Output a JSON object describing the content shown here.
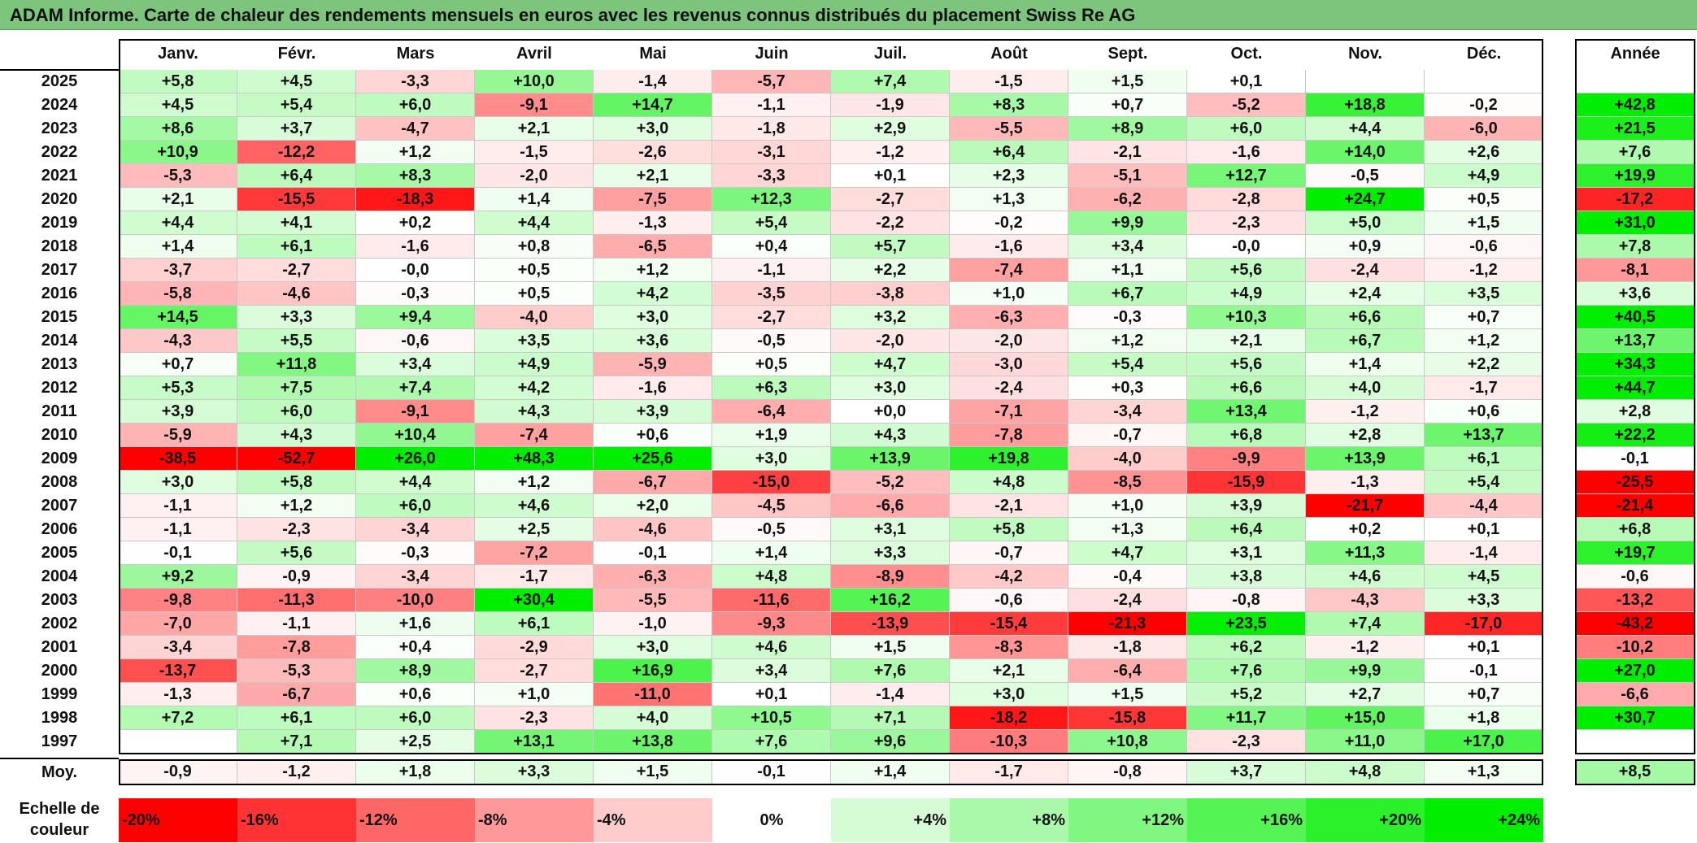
{
  "title": "ADAM Informe. Carte de chaleur des rendements mensuels en euros avec les revenus connus distribués du placement Swiss Re AG",
  "chart_data": {
    "type": "heatmap",
    "months": [
      "Janv.",
      "Févr.",
      "Mars",
      "Avril",
      "Mai",
      "Juin",
      "Juil.",
      "Août",
      "Sept.",
      "Oct.",
      "Nov.",
      "Déc."
    ],
    "year_label": "Année",
    "rows": [
      {
        "year": "2025",
        "values": [
          "+5,8",
          "+4,5",
          "-3,3",
          "+10,0",
          "-1,4",
          "-5,7",
          "+7,4",
          "-1,5",
          "+1,5",
          "+0,1",
          "",
          ""
        ],
        "annual": ""
      },
      {
        "year": "2024",
        "values": [
          "+4,5",
          "+5,4",
          "+6,0",
          "-9,1",
          "+14,7",
          "-1,1",
          "-1,9",
          "+8,3",
          "+0,7",
          "-5,2",
          "+18,8",
          "-0,2"
        ],
        "annual": "+42,8"
      },
      {
        "year": "2023",
        "values": [
          "+8,6",
          "+3,7",
          "-4,7",
          "+2,1",
          "+3,0",
          "-1,8",
          "+2,9",
          "-5,5",
          "+8,9",
          "+6,0",
          "+4,4",
          "-6,0"
        ],
        "annual": "+21,5"
      },
      {
        "year": "2022",
        "values": [
          "+10,9",
          "-12,2",
          "+1,2",
          "-1,5",
          "-2,6",
          "-3,1",
          "-1,2",
          "+6,4",
          "-2,1",
          "-1,6",
          "+14,0",
          "+2,6"
        ],
        "annual": "+7,6"
      },
      {
        "year": "2021",
        "values": [
          "-5,3",
          "+6,4",
          "+8,3",
          "-2,0",
          "+2,1",
          "-3,3",
          "+0,1",
          "+2,3",
          "-5,1",
          "+12,7",
          "-0,5",
          "+4,9"
        ],
        "annual": "+19,9"
      },
      {
        "year": "2020",
        "values": [
          "+2,1",
          "-15,5",
          "-18,3",
          "+1,4",
          "-7,5",
          "+12,3",
          "-2,7",
          "+1,3",
          "-6,2",
          "-2,8",
          "+24,7",
          "+0,5"
        ],
        "annual": "-17,2"
      },
      {
        "year": "2019",
        "values": [
          "+4,4",
          "+4,1",
          "+0,2",
          "+4,4",
          "-1,3",
          "+5,4",
          "-2,2",
          "-0,2",
          "+9,9",
          "-2,3",
          "+5,0",
          "+1,5"
        ],
        "annual": "+31,0"
      },
      {
        "year": "2018",
        "values": [
          "+1,4",
          "+6,1",
          "-1,6",
          "+0,8",
          "-6,5",
          "+0,4",
          "+5,7",
          "-1,6",
          "+3,4",
          "-0,0",
          "+0,9",
          "-0,6"
        ],
        "annual": "+7,8"
      },
      {
        "year": "2017",
        "values": [
          "-3,7",
          "-2,7",
          "-0,0",
          "+0,5",
          "+1,2",
          "-1,1",
          "+2,2",
          "-7,4",
          "+1,1",
          "+5,6",
          "-2,4",
          "-1,2"
        ],
        "annual": "-8,1"
      },
      {
        "year": "2016",
        "values": [
          "-5,8",
          "-4,6",
          "-0,3",
          "+0,5",
          "+4,2",
          "-3,5",
          "-3,8",
          "+1,0",
          "+6,7",
          "+4,9",
          "+2,4",
          "+3,5"
        ],
        "annual": "+3,6"
      },
      {
        "year": "2015",
        "values": [
          "+14,5",
          "+3,3",
          "+9,4",
          "-4,0",
          "+3,0",
          "-2,7",
          "+3,2",
          "-6,3",
          "-0,3",
          "+10,3",
          "+6,6",
          "+0,7"
        ],
        "annual": "+40,5"
      },
      {
        "year": "2014",
        "values": [
          "-4,3",
          "+5,5",
          "-0,6",
          "+3,5",
          "+3,6",
          "-0,5",
          "-2,0",
          "-2,0",
          "+1,2",
          "+2,1",
          "+6,7",
          "+1,2"
        ],
        "annual": "+13,7"
      },
      {
        "year": "2013",
        "values": [
          "+0,7",
          "+11,8",
          "+3,4",
          "+4,9",
          "-5,9",
          "+0,5",
          "+4,7",
          "-3,0",
          "+5,4",
          "+5,6",
          "+1,4",
          "+2,2"
        ],
        "annual": "+34,3"
      },
      {
        "year": "2012",
        "values": [
          "+5,3",
          "+7,5",
          "+7,4",
          "+4,2",
          "-1,6",
          "+6,3",
          "+3,0",
          "-2,4",
          "+0,3",
          "+6,6",
          "+4,0",
          "-1,7"
        ],
        "annual": "+44,7"
      },
      {
        "year": "2011",
        "values": [
          "+3,9",
          "+6,0",
          "-9,1",
          "+4,3",
          "+3,9",
          "-6,4",
          "+0,0",
          "-7,1",
          "-3,4",
          "+13,4",
          "-1,2",
          "+0,6"
        ],
        "annual": "+2,8"
      },
      {
        "year": "2010",
        "values": [
          "-5,9",
          "+4,3",
          "+10,4",
          "-7,4",
          "+0,6",
          "+1,9",
          "+4,3",
          "-7,8",
          "-0,7",
          "+6,8",
          "+2,8",
          "+13,7"
        ],
        "annual": "+22,2"
      },
      {
        "year": "2009",
        "values": [
          "-38,5",
          "-52,7",
          "+26,0",
          "+48,3",
          "+25,6",
          "+3,0",
          "+13,9",
          "+19,8",
          "-4,0",
          "-9,9",
          "+13,9",
          "+6,1"
        ],
        "annual": "-0,1"
      },
      {
        "year": "2008",
        "values": [
          "+3,0",
          "+5,8",
          "+4,4",
          "+1,2",
          "-6,7",
          "-15,0",
          "-5,2",
          "+4,8",
          "-8,5",
          "-15,9",
          "-1,3",
          "+5,4"
        ],
        "annual": "-25,5"
      },
      {
        "year": "2007",
        "values": [
          "-1,1",
          "+1,2",
          "+6,0",
          "+4,6",
          "+2,0",
          "-4,5",
          "-6,6",
          "-2,1",
          "+1,0",
          "+3,9",
          "-21,7",
          "-4,4"
        ],
        "annual": "-21,4"
      },
      {
        "year": "2006",
        "values": [
          "-1,1",
          "-2,3",
          "-3,4",
          "+2,5",
          "-4,6",
          "-0,5",
          "+3,1",
          "+5,8",
          "+1,3",
          "+6,4",
          "+0,2",
          "+0,1"
        ],
        "annual": "+6,8"
      },
      {
        "year": "2005",
        "values": [
          "-0,1",
          "+5,6",
          "-0,3",
          "-7,2",
          "-0,1",
          "+1,4",
          "+3,3",
          "-0,7",
          "+4,7",
          "+3,1",
          "+11,3",
          "-1,4"
        ],
        "annual": "+19,7"
      },
      {
        "year": "2004",
        "values": [
          "+9,2",
          "-0,9",
          "-3,4",
          "-1,7",
          "-6,3",
          "+4,8",
          "-8,9",
          "-4,2",
          "-0,4",
          "+3,8",
          "+4,6",
          "+4,5"
        ],
        "annual": "-0,6"
      },
      {
        "year": "2003",
        "values": [
          "-9,8",
          "-11,3",
          "-10,0",
          "+30,4",
          "-5,5",
          "-11,6",
          "+16,2",
          "-0,6",
          "-2,4",
          "-0,8",
          "-4,3",
          "+3,3"
        ],
        "annual": "-13,2"
      },
      {
        "year": "2002",
        "values": [
          "-7,0",
          "-1,1",
          "+1,6",
          "+6,1",
          "-1,0",
          "-9,3",
          "-13,9",
          "-15,4",
          "-21,3",
          "+23,5",
          "+7,4",
          "-17,0"
        ],
        "annual": "-43,2"
      },
      {
        "year": "2001",
        "values": [
          "-3,4",
          "-7,8",
          "+0,4",
          "-2,9",
          "+3,0",
          "+4,6",
          "+1,5",
          "-8,3",
          "-1,8",
          "+6,2",
          "-1,2",
          "+0,1"
        ],
        "annual": "-10,2"
      },
      {
        "year": "2000",
        "values": [
          "-13,7",
          "-5,3",
          "+8,9",
          "-2,7",
          "+16,9",
          "+3,4",
          "+7,6",
          "+2,1",
          "-6,4",
          "+7,6",
          "+9,9",
          "-0,1"
        ],
        "annual": "+27,0"
      },
      {
        "year": "1999",
        "values": [
          "-1,3",
          "-6,7",
          "+0,6",
          "+1,0",
          "-11,0",
          "+0,1",
          "-1,4",
          "+3,0",
          "+1,5",
          "+5,2",
          "+2,7",
          "+0,7"
        ],
        "annual": "-6,6"
      },
      {
        "year": "1998",
        "values": [
          "+7,2",
          "+6,1",
          "+6,0",
          "-2,3",
          "+4,0",
          "+10,5",
          "+7,1",
          "-18,2",
          "-15,8",
          "+11,7",
          "+15,0",
          "+1,8"
        ],
        "annual": "+30,7"
      },
      {
        "year": "1997",
        "values": [
          "",
          "+7,1",
          "+2,5",
          "+13,1",
          "+13,8",
          "+7,6",
          "+9,6",
          "-10,3",
          "+10,8",
          "-2,3",
          "+11,0",
          "+17,0"
        ],
        "annual": ""
      }
    ],
    "average": {
      "label": "Moy.",
      "values": [
        "-0,9",
        "-1,2",
        "+1,8",
        "+3,3",
        "+1,5",
        "-0,1",
        "+1,4",
        "-1,7",
        "-0,8",
        "+3,7",
        "+4,8",
        "+1,3"
      ],
      "annual": "+8,5"
    },
    "legend": {
      "label_line1": "Echelle de",
      "label_line2": "couleur",
      "stops": [
        "-20%",
        "-16%",
        "-12%",
        "-8%",
        "-4%",
        "0%",
        "+4%",
        "+8%",
        "+12%",
        "+16%",
        "+20%",
        "+24%"
      ],
      "stop_values": [
        -20,
        -16,
        -12,
        -8,
        -4,
        0,
        4,
        8,
        12,
        16,
        20,
        24
      ]
    },
    "colors": {
      "negative_max": "#ff0000",
      "neutral": "#ffffff",
      "positive_max": "#00ee00",
      "title_bar": "#7dc47d"
    }
  }
}
